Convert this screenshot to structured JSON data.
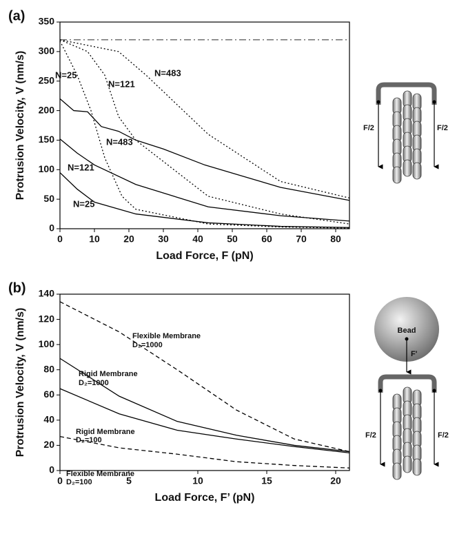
{
  "chart_data": [
    {
      "type": "line",
      "panel_label": "(a)",
      "x_label": "Load Force, F (pN)",
      "y_label": "Protrusion Velocity, V (nm/s)",
      "xlim": [
        0,
        84
      ],
      "xticks": [
        0,
        10,
        20,
        30,
        40,
        50,
        60,
        70,
        80
      ],
      "ylim": [
        0,
        350
      ],
      "yticks": [
        0,
        50,
        100,
        150,
        200,
        250,
        300,
        350
      ],
      "annotations": [
        "N=25",
        "N=121",
        "N=483",
        "N=483",
        "N=121",
        "N=25"
      ],
      "series": [
        {
          "color": "#555555",
          "style": "dashdot",
          "x": [
            0,
            84
          ],
          "values": [
            320,
            320
          ]
        },
        {
          "color": "#000000",
          "style": "solid",
          "x": [
            0,
            4,
            8,
            12,
            17,
            22,
            30,
            42,
            64,
            84
          ],
          "values": [
            220,
            200,
            198,
            173,
            165,
            150,
            135,
            108,
            70,
            48
          ]
        },
        {
          "color": "#000000",
          "style": "solid",
          "x": [
            0,
            5,
            10,
            22,
            43,
            64,
            84
          ],
          "values": [
            152,
            128,
            108,
            75,
            37,
            22,
            13
          ]
        },
        {
          "color": "#000000",
          "style": "solid",
          "x": [
            0,
            5,
            10,
            22,
            43,
            64,
            84
          ],
          "values": [
            95,
            67,
            45,
            25,
            10,
            4,
            2
          ]
        },
        {
          "color": "#000000",
          "style": "dotted",
          "x": [
            0,
            17,
            25,
            43,
            64,
            84
          ],
          "values": [
            320,
            300,
            260,
            160,
            80,
            52
          ]
        },
        {
          "color": "#000000",
          "style": "dotted",
          "x": [
            0,
            8,
            13,
            17,
            22,
            43,
            64,
            84
          ],
          "values": [
            320,
            300,
            260,
            190,
            150,
            55,
            25,
            8
          ]
        },
        {
          "color": "#000000",
          "style": "dotted",
          "x": [
            0,
            5,
            9,
            13,
            18,
            22,
            43,
            64,
            84
          ],
          "values": [
            318,
            260,
            200,
            120,
            55,
            33,
            8,
            3,
            1
          ]
        }
      ]
    },
    {
      "type": "line",
      "panel_label": "(b)",
      "x_label": "Load Force, F’ (pN)",
      "y_label": "Protrusion Velocity, V (nm/s)",
      "xlim": [
        0,
        21
      ],
      "xticks": [
        0,
        5,
        10,
        15,
        20
      ],
      "ylim": [
        0,
        140
      ],
      "yticks": [
        0,
        20,
        40,
        60,
        80,
        100,
        120,
        140
      ],
      "annotations": [
        "Flexible Membrane",
        "D₂=1000",
        "Rigid Membrane",
        "D₂=1000",
        "Rigid Membrane",
        "D₂=100",
        "Flexible Membrane",
        "D₂=100"
      ],
      "series": [
        {
          "color": "#000000",
          "style": "dashed",
          "x": [
            0,
            4.3,
            8.5,
            12.8,
            17,
            21
          ],
          "values": [
            134,
            110,
            80,
            48,
            25,
            15
          ]
        },
        {
          "color": "#000000",
          "style": "solid",
          "x": [
            0,
            4.3,
            8.5,
            12.8,
            17,
            21
          ],
          "values": [
            89,
            59,
            39,
            28,
            20,
            15
          ]
        },
        {
          "color": "#000000",
          "style": "solid",
          "x": [
            0,
            4.3,
            8.5,
            12.8,
            17,
            21
          ],
          "values": [
            65,
            45,
            32,
            25,
            19,
            14
          ]
        },
        {
          "color": "#000000",
          "style": "dashed",
          "x": [
            0,
            4.3,
            8.5,
            12.8,
            17,
            21
          ],
          "values": [
            27,
            18,
            13,
            7,
            4,
            2
          ]
        }
      ]
    }
  ],
  "diagrams": {
    "top": [
      "F/2",
      "F/2"
    ],
    "bottom": [
      "Bead",
      "F'",
      "F/2",
      "F/2"
    ]
  }
}
